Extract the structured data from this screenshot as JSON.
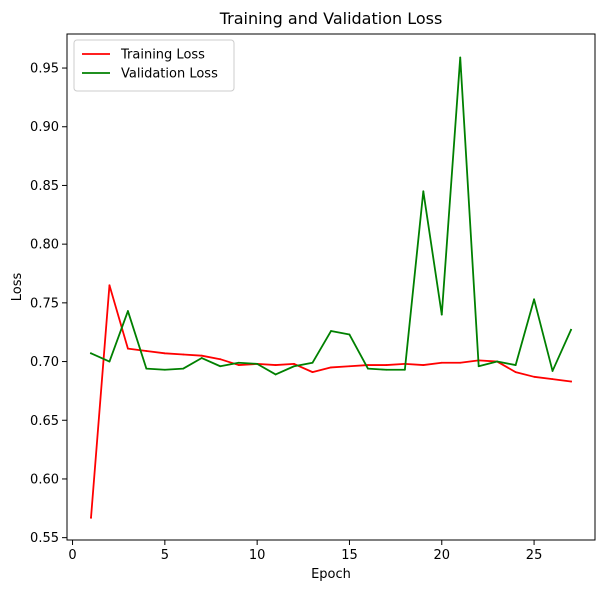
{
  "chart_data": {
    "type": "line",
    "title": "Training and Validation Loss",
    "xlabel": "Epoch",
    "ylabel": "Loss",
    "xlim": [
      -0.3,
      28.3
    ],
    "ylim": [
      0.548,
      0.979
    ],
    "x_ticks": [
      0,
      5,
      10,
      15,
      20,
      25
    ],
    "x_tick_labels": [
      "0",
      "5",
      "10",
      "15",
      "20",
      "25"
    ],
    "y_ticks": [
      0.55,
      0.6,
      0.65,
      0.7,
      0.75,
      0.8,
      0.85,
      0.9,
      0.95
    ],
    "y_tick_labels": [
      "0.55",
      "0.60",
      "0.65",
      "0.70",
      "0.75",
      "0.80",
      "0.85",
      "0.90",
      "0.95"
    ],
    "grid": false,
    "legend_position": "top-left",
    "x": [
      1,
      2,
      3,
      4,
      5,
      6,
      7,
      8,
      9,
      10,
      11,
      12,
      13,
      14,
      15,
      16,
      17,
      18,
      19,
      20,
      21,
      22,
      23,
      24,
      25,
      26,
      27
    ],
    "series": [
      {
        "name": "Training Loss",
        "color": "#ff0000",
        "values": [
          0.567,
          0.765,
          0.711,
          0.709,
          0.707,
          0.706,
          0.705,
          0.702,
          0.697,
          0.698,
          0.697,
          0.698,
          0.691,
          0.695,
          0.696,
          0.697,
          0.697,
          0.698,
          0.697,
          0.699,
          0.699,
          0.701,
          0.7,
          0.691,
          0.687,
          0.685,
          0.683
        ]
      },
      {
        "name": "Validation Loss",
        "color": "#008000",
        "values": [
          0.707,
          0.7,
          0.743,
          0.694,
          0.693,
          0.694,
          0.703,
          0.696,
          0.699,
          0.698,
          0.689,
          0.696,
          0.699,
          0.726,
          0.723,
          0.694,
          0.693,
          0.693,
          0.845,
          0.74,
          0.959,
          0.696,
          0.7,
          0.697,
          0.753,
          0.692,
          0.727
        ]
      }
    ]
  }
}
